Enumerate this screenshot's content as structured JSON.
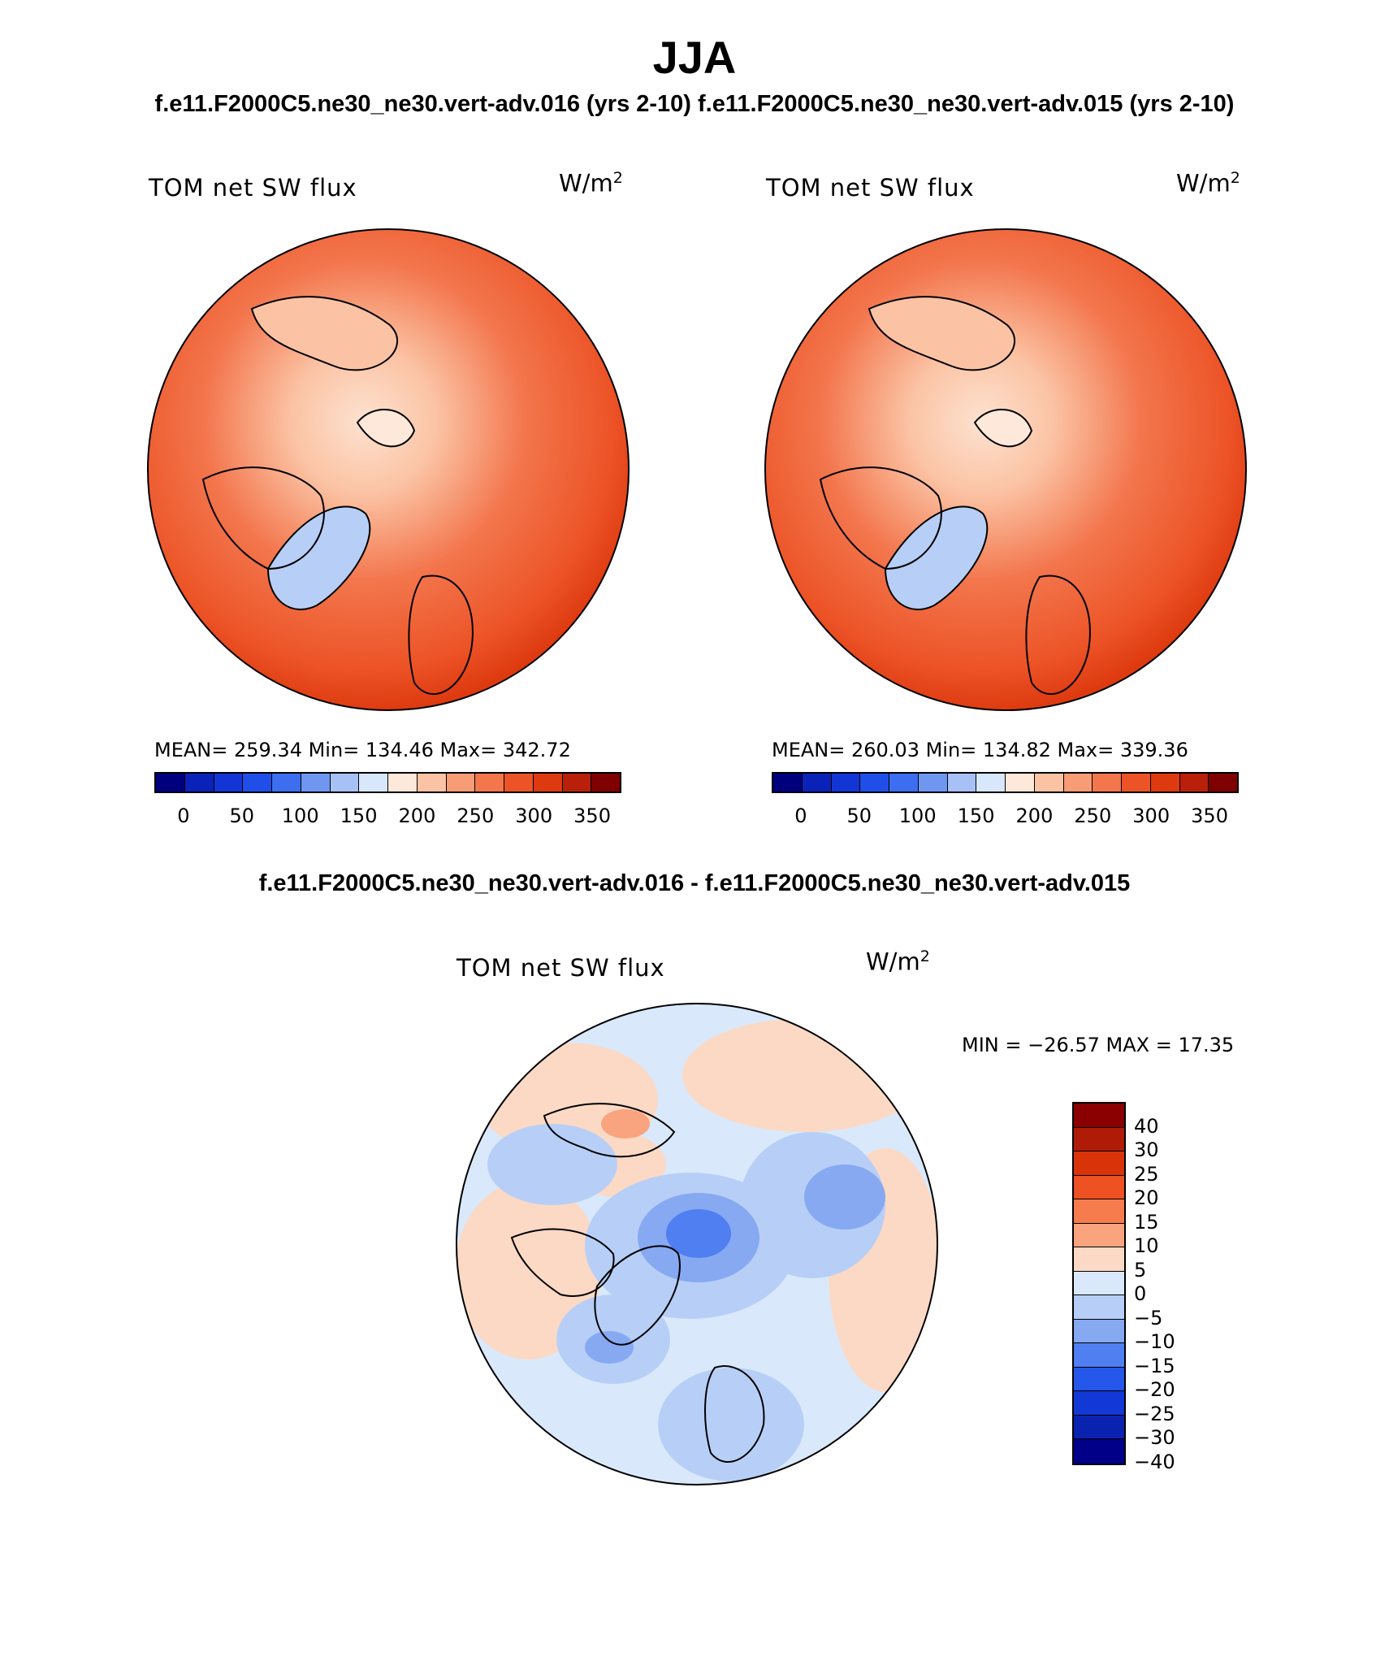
{
  "title": "JJA",
  "case_titles": "f.e11.F2000C5.ne30_ne30.vert-adv.016 (yrs 2-10) f.e11.F2000C5.ne30_ne30.vert-adv.015 (yrs 2-10)",
  "diff_title": "f.e11.F2000C5.ne30_ne30.vert-adv.016 - f.e11.F2000C5.ne30_ne30.vert-adv.015",
  "panels": [
    {
      "variable": "TOM net SW flux",
      "units_base": "W/m",
      "units_exp": "2",
      "stats": "MEAN= 259.34   Min= 134.46   Max= 342.72"
    },
    {
      "variable": "TOM net SW flux",
      "units_base": "W/m",
      "units_exp": "2",
      "stats": "MEAN= 260.03   Min= 134.82   Max= 339.36"
    }
  ],
  "diff_panel": {
    "variable": "TOM net SW flux",
    "units_base": "W/m",
    "units_exp": "2",
    "stats": "MIN = −26.57 MAX =   17.35"
  },
  "colorbar_top": {
    "colors": [
      "#00007f",
      "#0a22b8",
      "#1435d6",
      "#1f4fe8",
      "#3d6ef0",
      "#6f97f2",
      "#a7c1f6",
      "#d8e7fb",
      "#fde8d9",
      "#fbc3a4",
      "#f89c76",
      "#f3764d",
      "#ec5427",
      "#de3a10",
      "#b8200a",
      "#7f0000"
    ],
    "labels": [
      "0",
      "50",
      "100",
      "150",
      "200",
      "250",
      "300",
      "350"
    ]
  },
  "colorbar_diff": {
    "colors": [
      "#8b0000",
      "#b01b08",
      "#d9330a",
      "#ee5122",
      "#f67c4d",
      "#f9a47f",
      "#fcd9c4",
      "#d9e9fb",
      "#b7cff7",
      "#86a9f2",
      "#4f7ff0",
      "#2557ea",
      "#1238d5",
      "#0a22b0",
      "#000088"
    ],
    "labels": [
      "40",
      "30",
      "25",
      "20",
      "15",
      "10",
      "5",
      "0",
      "−5",
      "−10",
      "−15",
      "−20",
      "−25",
      "−30",
      "−40"
    ]
  }
}
